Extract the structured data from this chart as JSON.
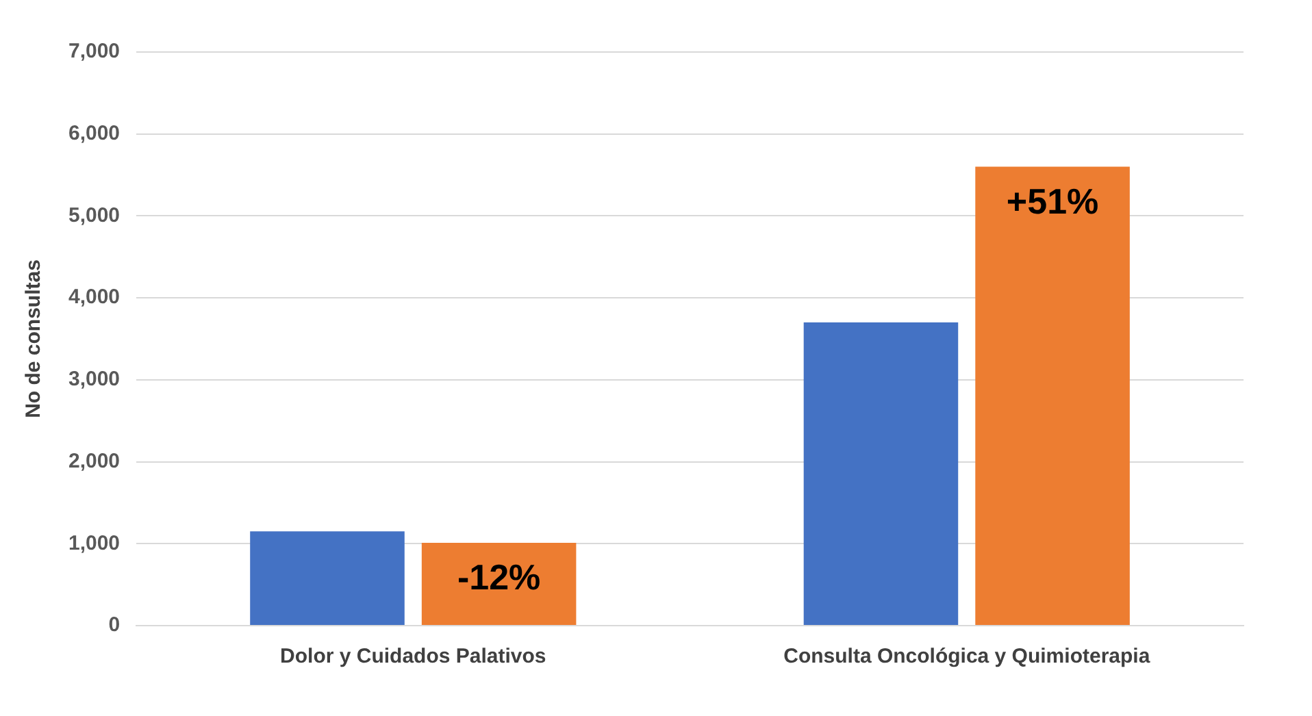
{
  "chart_data": {
    "type": "bar",
    "ylabel": "No de consultas",
    "categories": [
      "Dolor y Cuidados Palativos",
      "Consulta Oncológica y Quimioterapia"
    ],
    "series": [
      {
        "color": "#4472c4",
        "values": [
          1150,
          3700
        ]
      },
      {
        "color": "#ed7d31",
        "values": [
          1010,
          5600
        ]
      }
    ],
    "ylim": [
      0,
      7000
    ],
    "yticks": [
      {
        "value": 0,
        "label": "0"
      },
      {
        "value": 1000,
        "label": "1,000"
      },
      {
        "value": 2000,
        "label": "2,000"
      },
      {
        "value": 3000,
        "label": "3,000"
      },
      {
        "value": 4000,
        "label": "4,000"
      },
      {
        "value": 5000,
        "label": "5,000"
      },
      {
        "value": 6000,
        "label": "6,000"
      },
      {
        "value": 7000,
        "label": "7,000"
      }
    ],
    "grid": "y",
    "legend": false,
    "annotations": [
      "-12%",
      "+51%"
    ]
  }
}
